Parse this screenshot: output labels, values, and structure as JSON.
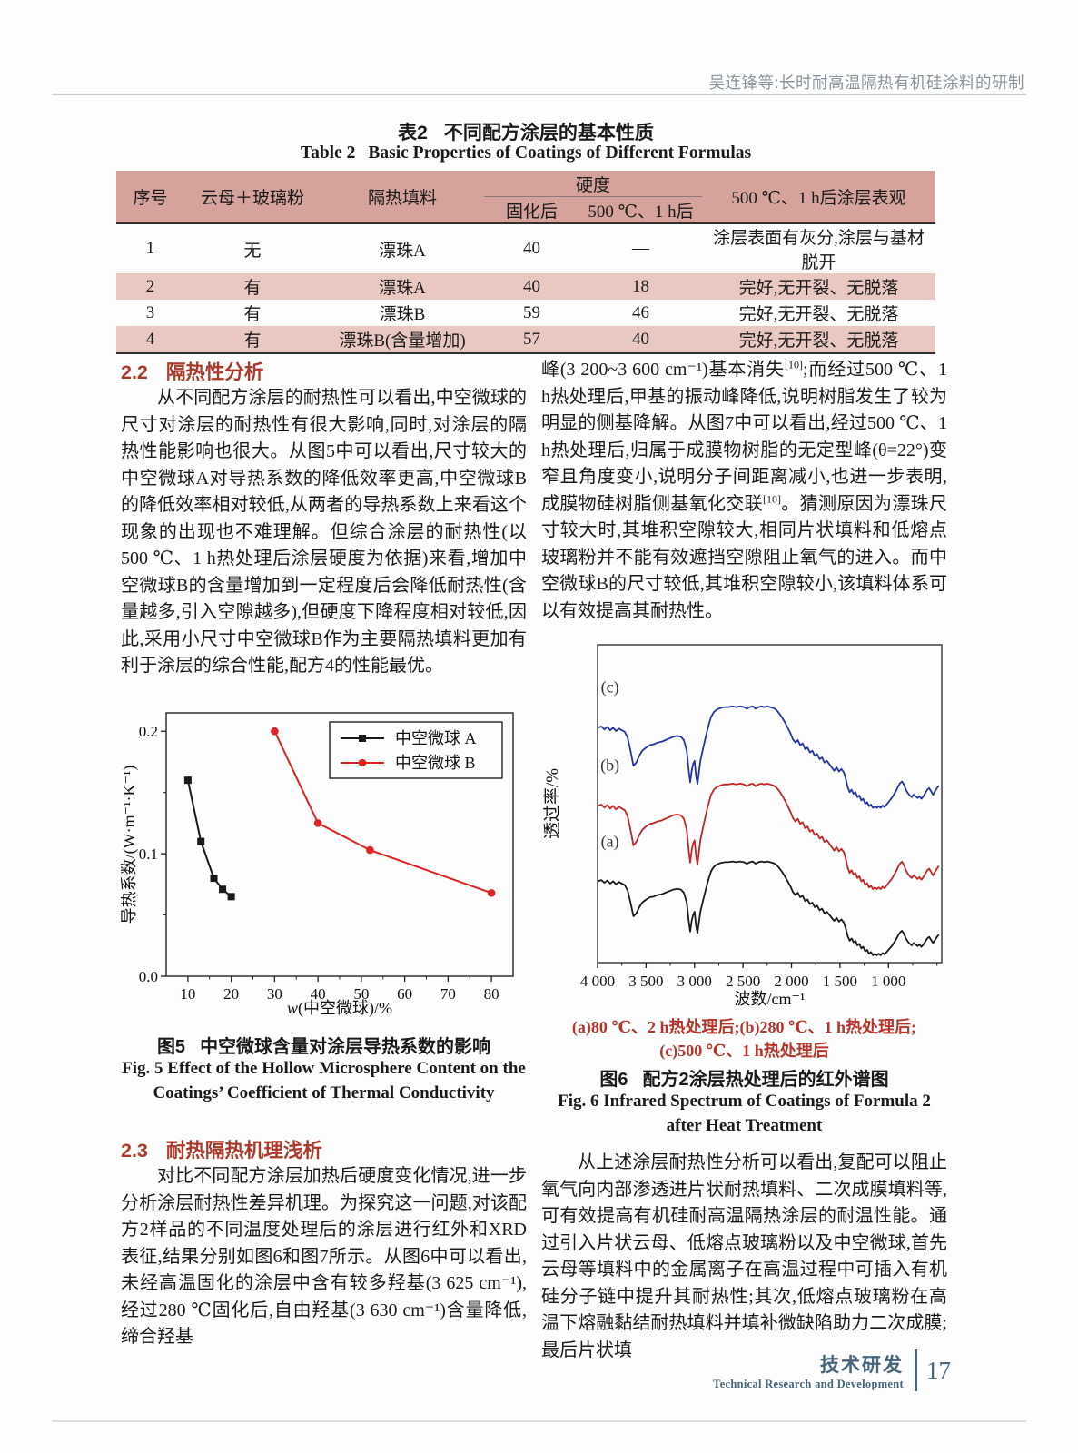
{
  "header": {
    "running_title": "吴连锋等:长时耐高温隔热有机硅涂料的研制"
  },
  "table2": {
    "title_zh_label": "表2",
    "title_zh_text": "不同配方涂层的基本性质",
    "title_en_label": "Table 2",
    "title_en_text": "Basic Properties of Coatings of Different Formulas",
    "col_headers": {
      "no": "序号",
      "mica": "云母＋玻璃粉",
      "filler": "隔热填料",
      "hardness": "硬度",
      "cured": "固化后",
      "after500": "500 ℃、1 h后",
      "appearance": "500 ℃、1 h后涂层表观"
    },
    "rows": [
      [
        "1",
        "无",
        "漂珠A",
        "40",
        "—",
        "涂层表面有灰分,涂层与基材脱开"
      ],
      [
        "2",
        "有",
        "漂珠A",
        "40",
        "18",
        "完好,无开裂、无脱落"
      ],
      [
        "3",
        "有",
        "漂珠B",
        "59",
        "46",
        "完好,无开裂、无脱落"
      ],
      [
        "4",
        "有",
        "漂珠B(含量增加)",
        "57",
        "40",
        "完好,无开裂、无脱落"
      ]
    ]
  },
  "sections": {
    "s22": {
      "num": "2.2",
      "title": "隔热性分析",
      "body": "从不同配方涂层的耐热性可以看出,中空微球的尺寸对涂层的耐热性有很大影响,同时,对涂层的隔热性能影响也很大。从图5中可以看出,尺寸较大的中空微球A对导热系数的降低效率更高,中空微球B的降低效率相对较低,从两者的导热系数上来看这个现象的出现也不难理解。但综合涂层的耐热性(以500 ℃、1 h热处理后涂层硬度为依据)来看,增加中空微球B的含量增加到一定程度后会降低耐热性(含量越多,引入空隙越多),但硬度下降程度相对较低,因此,采用小尺寸中空微球B作为主要隔热填料更加有利于涂层的综合性能,配方4的性能最优。"
    },
    "s23": {
      "num": "2.3",
      "title": "耐热隔热机理浅析",
      "body": "对比不同配方涂层加热后硬度变化情况,进一步分析涂层耐热性差异机理。为探究这一问题,对该配方2样品的不同温度处理后的涂层进行红外和XRD表征,结果分别如图6和图7所示。从图6中可以看出,未经高温固化的涂层中含有较多羟基(3 625 cm⁻¹),经过280 ℃固化后,自由羟基(3 630 cm⁻¹)含量降低,缔合羟基"
    }
  },
  "right_col": {
    "para_top": "峰(3 200~3 600 cm⁻¹)基本消失^{[10]};而经过500 ℃、1 h热处理后,甲基的振动峰降低,说明树脂发生了较为明显的侧基降解。从图7中可以看出,经过500 ℃、1 h热处理后,归属于成膜物树脂的无定型峰(θ=22°)变窄且角度变小,说明分子间距离减小,也进一步表明,成膜物硅树脂侧基氧化交联^{[10]}。猜测原因为漂珠尺寸较大时,其堆积空隙较大,相同片状填料和低熔点玻璃粉并不能有效遮挡空隙阻止氧气的进入。而中空微球B的尺寸较低,其堆积空隙较小,该填料体系可以有效提高其耐热性。",
    "para_bottom": "从上述涂层耐热性分析可以看出,复配可以阻止氧气向内部渗透进片状耐热填料、二次成膜填料等,可有效提高有机硅耐高温隔热涂层的耐温性能。通过引入片状云母、低熔点玻璃粉以及中空微球,首先云母等填料中的金属离子在高温过程中可插入有机硅分子链中提升其耐热性;其次,低熔点玻璃粉在高温下熔融黏结耐热填料并填补微缺陷助力二次成膜;最后片状填"
  },
  "fig5": {
    "caption_zh_label": "图5",
    "caption_zh_text": "中空微球含量对涂层导热系数的影响",
    "caption_en": "Fig. 5  Effect of the Hollow Microsphere Content on the Coatings’ Coefficient of Thermal Conductivity"
  },
  "fig6": {
    "note_line1": "(a)80 ℃、2 h热处理后;(b)280 ℃、1 h热处理后;",
    "note_line2": "(c)500 ℃、1 h热处理后",
    "caption_zh_label": "图6",
    "caption_zh_text": "配方2涂层热处理后的红外谱图",
    "caption_en": "Fig. 6  Infrared Spectrum of Coatings of Formula 2 after Heat Treatment"
  },
  "footer": {
    "zh": "技术研发",
    "en": "Technical Research and Development",
    "page": "17"
  },
  "colors": {
    "heading_red": "#ab3a2b",
    "note_red": "#b5342b",
    "table_header_bg": "#d5a39b",
    "table_row_alt": "#e9c8c1",
    "running_head": "#8a949c",
    "head_rule": "#c6ccd1",
    "footer_slate": "#47657b"
  },
  "chart_data": [
    {
      "id": "fig5",
      "type": "line",
      "title": "图5 中空微球含量对涂层导热系数的影响",
      "xlabel": "w(中空微球)/%",
      "ylabel": "导热系数/(W·m⁻¹·K⁻¹)",
      "xlim": [
        5,
        85
      ],
      "ylim": [
        0,
        0.215
      ],
      "xticks": [
        10,
        20,
        30,
        40,
        50,
        60,
        70,
        80
      ],
      "yticks": [
        0,
        0.1,
        0.2
      ],
      "ytick_labels": [
        "0.0",
        "0.1",
        "0.2"
      ],
      "grid": false,
      "legend_position": "top-right",
      "series": [
        {
          "name": "中空微球 A",
          "color": "#1a1a1a",
          "marker": "square",
          "points": [
            [
              10,
              0.16
            ],
            [
              13,
              0.11
            ],
            [
              16,
              0.08
            ],
            [
              18,
              0.071
            ],
            [
              20,
              0.065
            ]
          ]
        },
        {
          "name": "中空微球 B",
          "color": "#e02222",
          "marker": "circle",
          "points": [
            [
              30,
              0.2
            ],
            [
              40,
              0.125
            ],
            [
              52,
              0.103
            ],
            [
              80,
              0.068
            ]
          ]
        }
      ]
    },
    {
      "id": "fig6",
      "type": "line",
      "title": "图6 配方2涂层热处理后的红外谱图",
      "xlabel": "波数/cm⁻¹",
      "ylabel": "透过率/%",
      "x_reversed": true,
      "xlim": [
        4000,
        450
      ],
      "xticks": [
        4000,
        3500,
        3000,
        2500,
        2000,
        1500,
        1000
      ],
      "xtick_labels": [
        "4 000",
        "3 500",
        "3 000",
        "2 500",
        "2 000",
        "1 500",
        "1 000"
      ],
      "curves": [
        {
          "label": "(a)",
          "desc": "80 ℃、2 h热处理后",
          "color": "#1a1a1a",
          "baseline": 0.72,
          "amplitude": 0.24
        },
        {
          "label": "(b)",
          "desc": "280 ℃、1 h热处理后",
          "color": "#c42525",
          "baseline": 0.48,
          "amplitude": 0.27
        },
        {
          "label": "(c)",
          "desc": "500 ℃、1 h热处理后",
          "color": "#2434a4",
          "baseline": 0.235,
          "amplitude": 0.26
        }
      ],
      "profile": [
        [
          4000,
          0.1
        ],
        [
          3960,
          0.085
        ],
        [
          3930,
          0.12
        ],
        [
          3900,
          0.09
        ],
        [
          3870,
          0.13
        ],
        [
          3840,
          0.1
        ],
        [
          3810,
          0.14
        ],
        [
          3780,
          0.11
        ],
        [
          3750,
          0.13
        ],
        [
          3720,
          0.15
        ],
        [
          3690,
          0.22
        ],
        [
          3660,
          0.38
        ],
        [
          3630,
          0.56
        ],
        [
          3600,
          0.52
        ],
        [
          3570,
          0.44
        ],
        [
          3540,
          0.38
        ],
        [
          3500,
          0.34
        ],
        [
          3460,
          0.31
        ],
        [
          3420,
          0.3
        ],
        [
          3380,
          0.28
        ],
        [
          3340,
          0.27
        ],
        [
          3300,
          0.25
        ],
        [
          3260,
          0.23
        ],
        [
          3220,
          0.21
        ],
        [
          3180,
          0.2
        ],
        [
          3140,
          0.21
        ],
        [
          3110,
          0.25
        ],
        [
          3080,
          0.38
        ],
        [
          3060,
          0.62
        ],
        [
          3045,
          0.76
        ],
        [
          3030,
          0.62
        ],
        [
          3015,
          0.54
        ],
        [
          3000,
          0.5
        ],
        [
          2985,
          0.68
        ],
        [
          2970,
          0.78
        ],
        [
          2955,
          0.64
        ],
        [
          2940,
          0.5
        ],
        [
          2925,
          0.42
        ],
        [
          2910,
          0.34
        ],
        [
          2890,
          0.24
        ],
        [
          2870,
          0.14
        ],
        [
          2850,
          0.05
        ],
        [
          2830,
          -0.03
        ],
        [
          2800,
          -0.09
        ],
        [
          2770,
          -0.12
        ],
        [
          2730,
          -0.14
        ],
        [
          2690,
          -0.15
        ],
        [
          2650,
          -0.15
        ],
        [
          2610,
          -0.16
        ],
        [
          2570,
          -0.15
        ],
        [
          2530,
          -0.16
        ],
        [
          2490,
          -0.15
        ],
        [
          2460,
          -0.13
        ],
        [
          2430,
          -0.15
        ],
        [
          2400,
          -0.16
        ],
        [
          2370,
          -0.13
        ],
        [
          2340,
          -0.15
        ],
        [
          2310,
          -0.16
        ],
        [
          2280,
          -0.15
        ],
        [
          2250,
          -0.16
        ],
        [
          2220,
          -0.15
        ],
        [
          2190,
          -0.14
        ],
        [
          2160,
          -0.12
        ],
        [
          2130,
          -0.08
        ],
        [
          2100,
          -0.03
        ],
        [
          2070,
          0.03
        ],
        [
          2040,
          0.1
        ],
        [
          2010,
          0.17
        ],
        [
          1985,
          0.24
        ],
        [
          1960,
          0.28
        ],
        [
          1935,
          0.25
        ],
        [
          1910,
          0.31
        ],
        [
          1885,
          0.29
        ],
        [
          1860,
          0.36
        ],
        [
          1835,
          0.34
        ],
        [
          1810,
          0.4
        ],
        [
          1785,
          0.38
        ],
        [
          1760,
          0.44
        ],
        [
          1735,
          0.42
        ],
        [
          1710,
          0.48
        ],
        [
          1685,
          0.46
        ],
        [
          1660,
          0.52
        ],
        [
          1635,
          0.5
        ],
        [
          1610,
          0.54
        ],
        [
          1585,
          0.58
        ],
        [
          1560,
          0.62
        ],
        [
          1535,
          0.58
        ],
        [
          1510,
          0.63
        ],
        [
          1485,
          0.6
        ],
        [
          1460,
          0.64
        ],
        [
          1440,
          0.72
        ],
        [
          1420,
          0.82
        ],
        [
          1400,
          0.88
        ],
        [
          1380,
          0.85
        ],
        [
          1360,
          0.9
        ],
        [
          1340,
          0.88
        ],
        [
          1320,
          0.94
        ],
        [
          1300,
          0.92
        ],
        [
          1280,
          0.98
        ],
        [
          1260,
          0.96
        ],
        [
          1240,
          1.02
        ],
        [
          1220,
          1.0
        ],
        [
          1200,
          1.05
        ],
        [
          1180,
          1.03
        ],
        [
          1160,
          1.07
        ],
        [
          1140,
          1.05
        ],
        [
          1120,
          1.07
        ],
        [
          1100,
          1.05
        ],
        [
          1080,
          1.07
        ],
        [
          1060,
          1.04
        ],
        [
          1040,
          1.06
        ],
        [
          1020,
          1.03
        ],
        [
          1000,
          1.0
        ],
        [
          980,
          0.97
        ],
        [
          960,
          0.94
        ],
        [
          940,
          0.9
        ],
        [
          920,
          0.86
        ],
        [
          900,
          0.81
        ],
        [
          880,
          0.77
        ],
        [
          860,
          0.75
        ],
        [
          840,
          0.79
        ],
        [
          820,
          0.85
        ],
        [
          800,
          0.89
        ],
        [
          780,
          0.92
        ],
        [
          760,
          0.94
        ],
        [
          740,
          0.91
        ],
        [
          720,
          0.93
        ],
        [
          700,
          0.95
        ],
        [
          680,
          0.93
        ],
        [
          660,
          0.96
        ],
        [
          640,
          0.93
        ],
        [
          620,
          0.89
        ],
        [
          600,
          0.85
        ],
        [
          580,
          0.83
        ],
        [
          560,
          0.87
        ],
        [
          540,
          0.91
        ],
        [
          520,
          0.87
        ],
        [
          500,
          0.83
        ],
        [
          480,
          0.8
        ]
      ]
    }
  ]
}
